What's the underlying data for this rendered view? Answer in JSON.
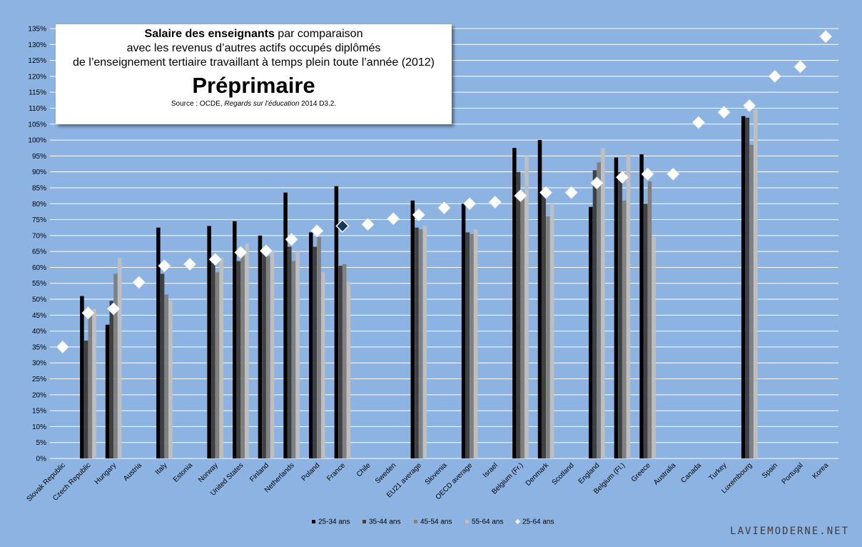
{
  "title": {
    "line1_bold": "Salaire des enseignants",
    "line1_rest": " par comparaison",
    "line2": "avec les revenus d’autres actifs occupés diplômés",
    "line3": "de l’enseignement tertiaire travaillant à temps plein toute l’année (2012)",
    "big": "Préprimaire",
    "source_prefix": "Source : OCDE, ",
    "source_italic": "Regards sur l’éducation",
    "source_suffix": " 2014 D3.2."
  },
  "watermark": "LAVIEMODERNE.NET",
  "colors": {
    "background": "#8db3e2",
    "grid": "#ffffff",
    "bar_25_34": "#000000",
    "bar_35_44": "#404040",
    "bar_45_54": "#808080",
    "bar_55_64": "#bfbfbf",
    "diamond": "#ffffff",
    "diamond_highlight": "#17375e"
  },
  "chart_data": {
    "type": "bar",
    "title": "Préprimaire",
    "ylim": [
      0,
      135
    ],
    "ytick_step": 5,
    "ytick_suffix": "%",
    "grid": true,
    "legend_position": "bottom",
    "highlight_category": "France",
    "categories": [
      "Slovak Republic",
      "Czech Republic",
      "Hungary",
      "Austria",
      "Italy",
      "Estonia",
      "Norway",
      "United States",
      "Finland",
      "Netherlands",
      "Poland",
      "France",
      "Chile",
      "Sweden",
      "EU21 average",
      "Slovenia",
      "OECD average",
      "Israel",
      "Belgium (Fr.)",
      "Denmark",
      "Scotland",
      "England",
      "Belgium (Fl.)",
      "Greece",
      "Australia",
      "Canada",
      "Turkey",
      "Luxembourg",
      "Spain",
      "Portugal",
      "Korea"
    ],
    "series": [
      {
        "name": "25-34 ans",
        "kind": "bar",
        "values": [
          null,
          51,
          42,
          null,
          72.5,
          null,
          73,
          74.5,
          70,
          83.5,
          71,
          85.5,
          null,
          null,
          81,
          null,
          80,
          null,
          97.5,
          100,
          null,
          79,
          94.5,
          95.5,
          null,
          null,
          null,
          107.5,
          null,
          null,
          null
        ]
      },
      {
        "name": "35-44 ans",
        "kind": "bar",
        "values": [
          null,
          37,
          49.5,
          null,
          58,
          null,
          61.5,
          62,
          65,
          66.5,
          66.5,
          60.5,
          null,
          null,
          72.5,
          null,
          71,
          null,
          90,
          83,
          null,
          90.5,
          90,
          80,
          null,
          null,
          null,
          107,
          null,
          null,
          null
        ]
      },
      {
        "name": "45-54 ans",
        "kind": "bar",
        "values": [
          null,
          46,
          58,
          null,
          51.5,
          null,
          58.5,
          65,
          63.5,
          62,
          69.5,
          61,
          null,
          null,
          72,
          null,
          70.5,
          null,
          83.5,
          76,
          null,
          93,
          81,
          87,
          null,
          null,
          null,
          98.5,
          null,
          null,
          null
        ]
      },
      {
        "name": "55-64 ans",
        "kind": "bar",
        "values": [
          null,
          47,
          63,
          null,
          49.5,
          null,
          63,
          67.5,
          65,
          65,
          58.5,
          55.5,
          null,
          null,
          73,
          null,
          72,
          null,
          95,
          80,
          null,
          97.5,
          95.5,
          69.5,
          null,
          null,
          null,
          109.5,
          null,
          null,
          null
        ]
      },
      {
        "name": "25-64 ans",
        "kind": "diamond",
        "values": [
          35,
          45.7,
          47,
          55.3,
          60.5,
          61,
          62.5,
          64.7,
          65.2,
          68.8,
          71.5,
          73,
          73.5,
          75.3,
          76.5,
          78.7,
          80,
          80.5,
          82.5,
          83.5,
          83.5,
          86.5,
          88.3,
          89.3,
          89.3,
          105.5,
          108.7,
          110.8,
          120,
          123,
          132.5
        ]
      }
    ]
  }
}
